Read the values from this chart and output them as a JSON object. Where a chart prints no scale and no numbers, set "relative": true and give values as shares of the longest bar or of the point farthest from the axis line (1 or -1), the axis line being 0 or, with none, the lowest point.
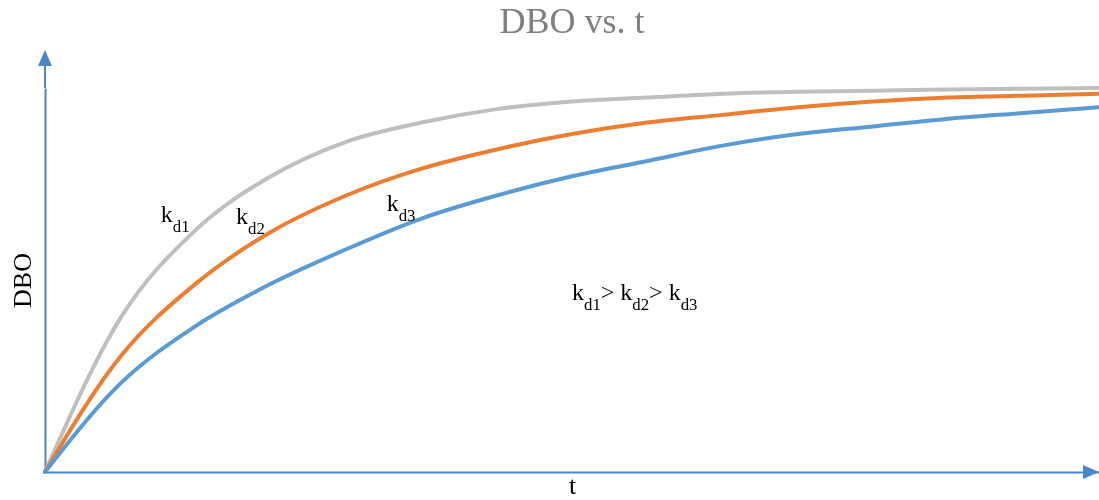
{
  "chart_data": {
    "type": "line",
    "title": "DBO vs. t",
    "xlabel": "t",
    "ylabel": "DBO",
    "relative": true,
    "categories": [
      null,
      null,
      null,
      null,
      null,
      null,
      null,
      null,
      null,
      null,
      null,
      null,
      null,
      null,
      null
    ],
    "series": [
      {
        "name": "k$_{d1}$",
        "color": "#bfbfbf",
        "values": [
          0,
          0.4,
          0.63,
          0.77,
          0.86,
          0.91,
          0.945,
          0.965,
          0.975,
          0.985,
          0.99,
          0.993,
          0.996,
          0.998,
          1.0
        ]
      },
      {
        "name": "k$_{d2}$",
        "color": "#ed7d31",
        "values": [
          0,
          0.3,
          0.49,
          0.625,
          0.72,
          0.79,
          0.84,
          0.88,
          0.91,
          0.93,
          0.95,
          0.965,
          0.975,
          0.98,
          0.985
        ]
      },
      {
        "name": "k$_{d3}$",
        "color": "#5b9bd5",
        "values": [
          0,
          0.23,
          0.38,
          0.49,
          0.58,
          0.66,
          0.72,
          0.77,
          0.81,
          0.85,
          0.88,
          0.9,
          0.92,
          0.935,
          0.95
        ]
      }
    ],
    "annotations": [
      "k$_{d1}$> k$_{d2}$> k$_{d3}$"
    ]
  }
}
